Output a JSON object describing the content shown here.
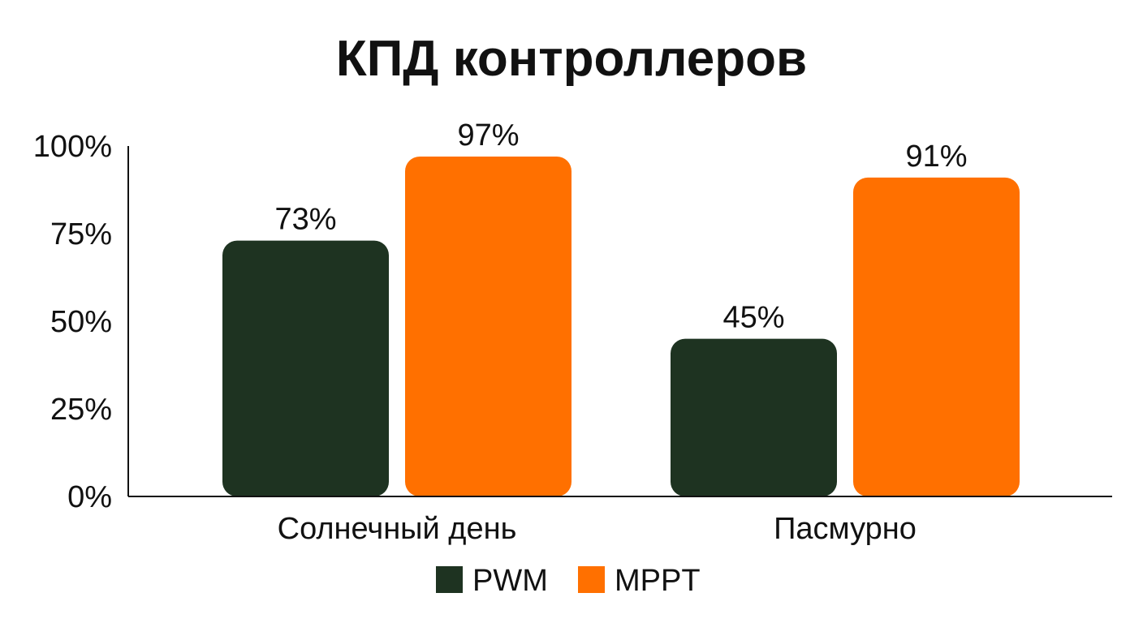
{
  "chart_data": {
    "type": "bar",
    "title": "КПД контроллеров",
    "categories": [
      "Солнечный день",
      "Пасмурно"
    ],
    "series": [
      {
        "name": "PWM",
        "values": [
          73,
          45
        ],
        "color": "#1e3321"
      },
      {
        "name": "MPPT",
        "values": [
          97,
          91
        ],
        "color": "#ff7000"
      }
    ],
    "ylim": [
      0,
      100
    ],
    "yticks": [
      0,
      25,
      50,
      75,
      100
    ],
    "ytick_labels": [
      "0%",
      "25%",
      "50%",
      "75%",
      "100%"
    ],
    "data_labels": [
      [
        "73%",
        "45%"
      ],
      [
        "97%",
        "91%"
      ]
    ],
    "grid": false,
    "legend": "bottom-center"
  }
}
